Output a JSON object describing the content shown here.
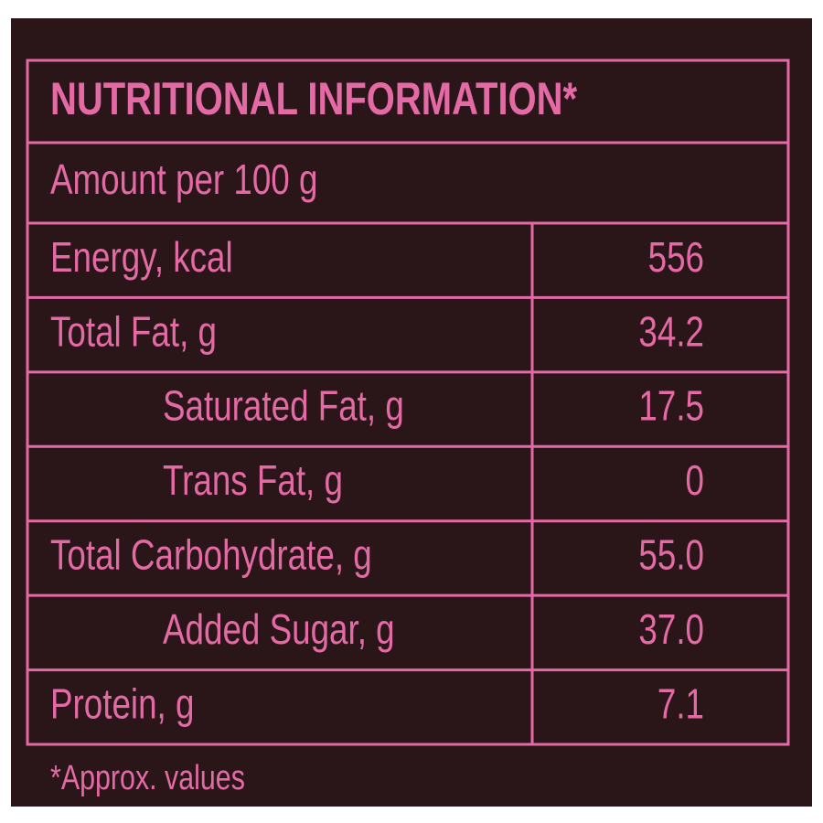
{
  "title": "NUTRITIONAL INFORMATION*",
  "subtitle": "Amount per 100 g",
  "rows": [
    {
      "label": "Energy, kcal",
      "value": "556",
      "indent": false
    },
    {
      "label": "Total Fat, g",
      "value": "34.2",
      "indent": false
    },
    {
      "label": "Saturated Fat, g",
      "value": "17.5",
      "indent": true
    },
    {
      "label": "Trans Fat, g",
      "value": "0",
      "indent": true
    },
    {
      "label": "Total Carbohydrate, g",
      "value": "55.0",
      "indent": false
    },
    {
      "label": "Added Sugar, g",
      "value": "37.0",
      "indent": true
    },
    {
      "label": "Protein, g",
      "value": "7.1",
      "indent": false
    }
  ],
  "footnote": "*Approx. values"
}
